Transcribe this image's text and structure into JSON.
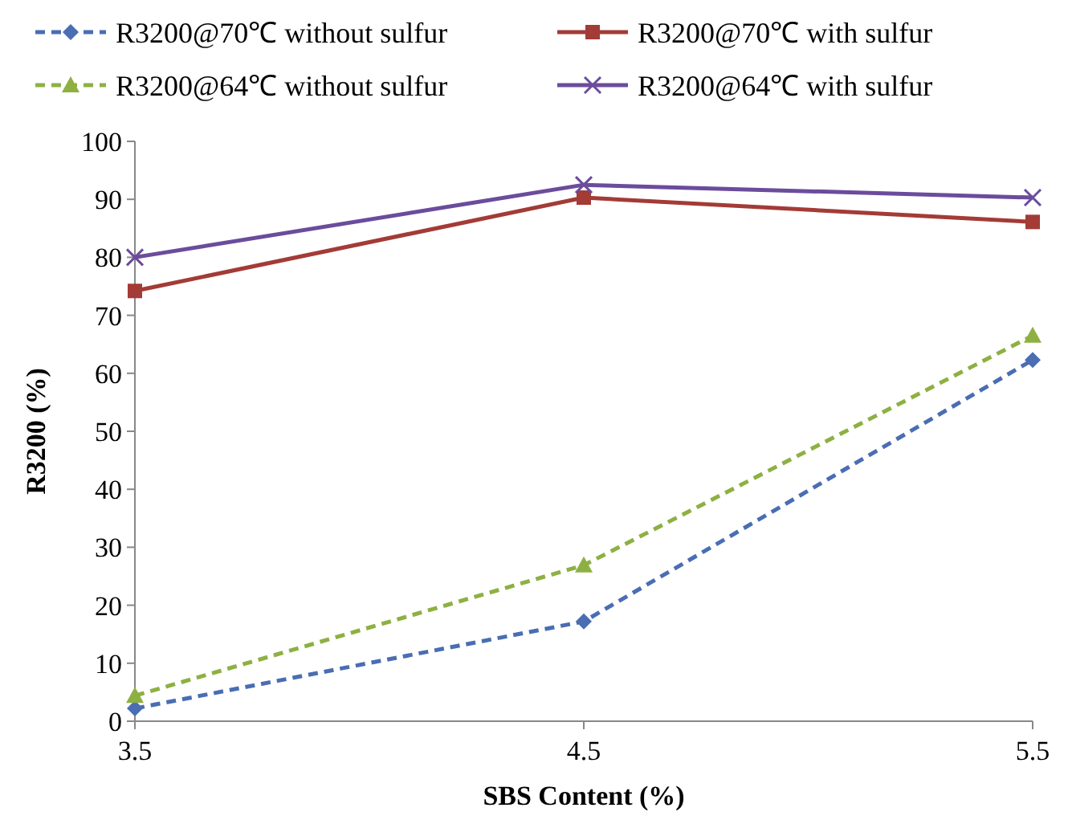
{
  "chart_data": {
    "type": "line",
    "xlabel": "SBS Content (%)",
    "ylabel": "R3200 (%)",
    "x": [
      3.5,
      4.5,
      5.5
    ],
    "xlim": [
      3.5,
      5.5
    ],
    "xticks": [
      3.5,
      4.5,
      5.5
    ],
    "ylim": [
      0,
      100
    ],
    "yticks": [
      0,
      10,
      20,
      30,
      40,
      50,
      60,
      70,
      80,
      90,
      100
    ],
    "grid": false,
    "legend": "top",
    "series": [
      {
        "name": "R3200@70℃ without sulfur",
        "color": "#4a6db3",
        "values": [
          2.2,
          17.2,
          62.3
        ],
        "marker": "diamond",
        "line_style": "dashed"
      },
      {
        "name": "R3200@70℃ with sulfur",
        "color": "#a33b36",
        "values": [
          74.2,
          90.3,
          86.1
        ],
        "marker": "square",
        "line_style": "solid"
      },
      {
        "name": "R3200@64℃ without sulfur",
        "color": "#8eb043",
        "values": [
          4.4,
          26.9,
          66.5
        ],
        "marker": "triangle",
        "line_style": "dashed"
      },
      {
        "name": "R3200@64℃ with sulfur",
        "color": "#6b4c9c",
        "values": [
          80,
          92.5,
          90.3
        ],
        "marker": "cross",
        "line_style": "solid"
      }
    ]
  }
}
